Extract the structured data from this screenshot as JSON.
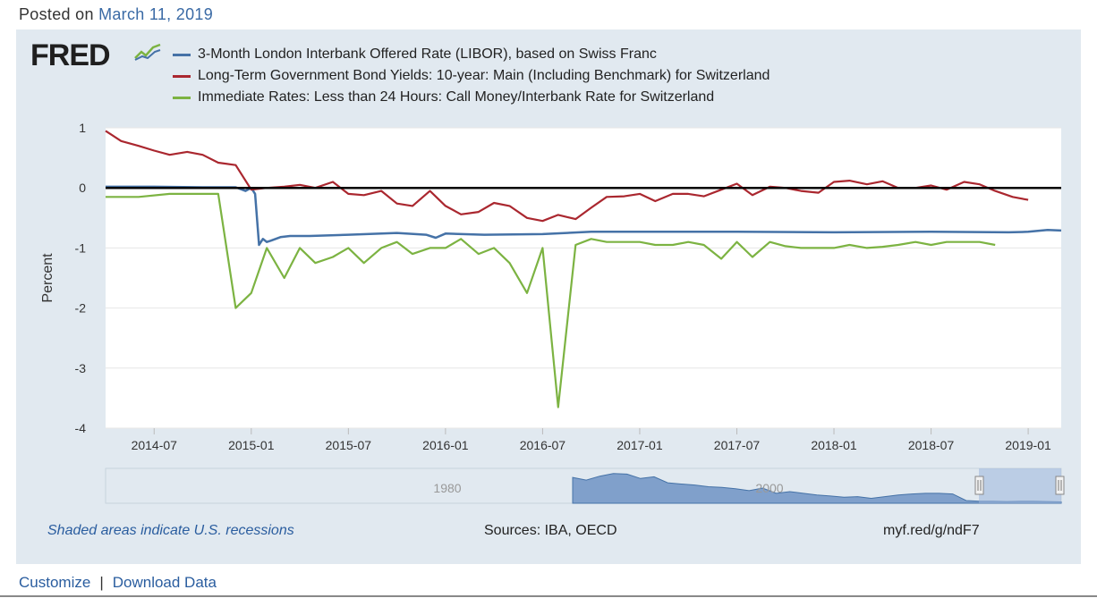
{
  "header": {
    "posted_prefix": "Posted on",
    "posted_date": "March 11, 2019"
  },
  "logo": {
    "text": "FRED"
  },
  "footer": {
    "recessions_note": "Shaded areas indicate U.S. recessions",
    "sources": "Sources: IBA, OECD",
    "short_link": "myf.red/g/ndF7"
  },
  "links": {
    "customize": "Customize",
    "separator": "|",
    "download": "Download Data"
  },
  "colors": {
    "libor": "#4572a7",
    "bond": "#aa272f",
    "call": "#7cb342",
    "plot_bg": "#ffffff",
    "panel_bg": "#e1e9f0"
  },
  "chart_data": {
    "type": "line",
    "ylabel": "Percent",
    "ylim": [
      -4,
      1
    ],
    "yticks": [
      "1",
      "0",
      "-1",
      "-2",
      "-3",
      "-4"
    ],
    "xlim": [
      2014.25,
      2019.17
    ],
    "xticks": [
      {
        "label": "2014-07",
        "x": 2014.5
      },
      {
        "label": "2015-01",
        "x": 2015.0
      },
      {
        "label": "2015-07",
        "x": 2015.5
      },
      {
        "label": "2016-01",
        "x": 2016.0
      },
      {
        "label": "2016-07",
        "x": 2016.5
      },
      {
        "label": "2017-01",
        "x": 2017.0
      },
      {
        "label": "2017-07",
        "x": 2017.5
      },
      {
        "label": "2018-01",
        "x": 2018.0
      },
      {
        "label": "2018-07",
        "x": 2018.5
      },
      {
        "label": "2019-01",
        "x": 2019.0
      }
    ],
    "navigator_labels": [
      "1980",
      "2000"
    ],
    "series": [
      {
        "name": "3-Month London Interbank Offered Rate (LIBOR), based on Swiss Franc",
        "key": "libor",
        "x": [
          2014.25,
          2014.5,
          2014.75,
          2014.92,
          2014.97,
          2015.0,
          2015.02,
          2015.04,
          2015.06,
          2015.08,
          2015.1,
          2015.15,
          2015.2,
          2015.3,
          2015.5,
          2015.75,
          2015.9,
          2015.95,
          2016.0,
          2016.2,
          2016.5,
          2016.75,
          2017.0,
          2017.5,
          2018.0,
          2018.5,
          2018.9,
          2019.0,
          2019.1,
          2019.17
        ],
        "values": [
          0.02,
          0.02,
          0.01,
          0.01,
          -0.05,
          0.0,
          -0.1,
          -0.95,
          -0.85,
          -0.9,
          -0.88,
          -0.82,
          -0.8,
          -0.8,
          -0.78,
          -0.75,
          -0.78,
          -0.83,
          -0.76,
          -0.78,
          -0.77,
          -0.73,
          -0.73,
          -0.73,
          -0.74,
          -0.73,
          -0.74,
          -0.73,
          -0.7,
          -0.71
        ]
      },
      {
        "name": "Long-Term Government Bond Yields: 10-year: Main (Including Benchmark) for Switzerland",
        "key": "bond",
        "x": [
          2014.25,
          2014.33,
          2014.42,
          2014.5,
          2014.58,
          2014.67,
          2014.75,
          2014.83,
          2014.92,
          2015.0,
          2015.08,
          2015.17,
          2015.25,
          2015.33,
          2015.42,
          2015.5,
          2015.58,
          2015.67,
          2015.75,
          2015.83,
          2015.92,
          2016.0,
          2016.08,
          2016.17,
          2016.25,
          2016.33,
          2016.42,
          2016.5,
          2016.58,
          2016.67,
          2016.75,
          2016.83,
          2016.92,
          2017.0,
          2017.08,
          2017.17,
          2017.25,
          2017.33,
          2017.42,
          2017.5,
          2017.58,
          2017.67,
          2017.75,
          2017.83,
          2017.92,
          2018.0,
          2018.08,
          2018.17,
          2018.25,
          2018.33,
          2018.42,
          2018.5,
          2018.58,
          2018.67,
          2018.75,
          2018.83,
          2018.92,
          2019.0
        ],
        "values": [
          0.95,
          0.78,
          0.7,
          0.62,
          0.55,
          0.6,
          0.55,
          0.42,
          0.38,
          -0.03,
          0.0,
          0.02,
          0.05,
          0.0,
          0.1,
          -0.1,
          -0.12,
          -0.05,
          -0.26,
          -0.3,
          -0.05,
          -0.3,
          -0.44,
          -0.4,
          -0.25,
          -0.3,
          -0.5,
          -0.55,
          -0.45,
          -0.52,
          -0.33,
          -0.15,
          -0.14,
          -0.1,
          -0.22,
          -0.1,
          -0.1,
          -0.14,
          -0.03,
          0.07,
          -0.12,
          0.02,
          0.0,
          -0.05,
          -0.08,
          0.1,
          0.12,
          0.06,
          0.11,
          0.0,
          0.0,
          0.04,
          -0.03,
          0.1,
          0.06,
          -0.05,
          -0.15,
          -0.2
        ]
      },
      {
        "name": "Immediate Rates: Less than 24 Hours: Call Money/Interbank Rate for Switzerland",
        "key": "call",
        "x": [
          2014.25,
          2014.42,
          2014.58,
          2014.67,
          2014.75,
          2014.83,
          2014.92,
          2015.0,
          2015.08,
          2015.17,
          2015.25,
          2015.33,
          2015.42,
          2015.5,
          2015.58,
          2015.67,
          2015.75,
          2015.83,
          2015.92,
          2016.0,
          2016.08,
          2016.17,
          2016.25,
          2016.33,
          2016.42,
          2016.5,
          2016.58,
          2016.67,
          2016.75,
          2016.83,
          2016.92,
          2017.0,
          2017.08,
          2017.17,
          2017.25,
          2017.33,
          2017.42,
          2017.5,
          2017.58,
          2017.67,
          2017.75,
          2017.83,
          2017.92,
          2018.0,
          2018.08,
          2018.17,
          2018.25,
          2018.33,
          2018.42,
          2018.5,
          2018.58,
          2018.67,
          2018.75,
          2018.83
        ],
        "values": [
          -0.15,
          -0.15,
          -0.1,
          -0.1,
          -0.1,
          -0.1,
          -2.0,
          -1.75,
          -1.0,
          -1.5,
          -1.0,
          -1.25,
          -1.15,
          -1.0,
          -1.25,
          -1.0,
          -0.9,
          -1.1,
          -1.0,
          -1.0,
          -0.85,
          -1.1,
          -1.0,
          -1.25,
          -1.75,
          -1.0,
          -3.65,
          -0.95,
          -0.85,
          -0.9,
          -0.9,
          -0.9,
          -0.95,
          -0.95,
          -0.9,
          -0.95,
          -1.18,
          -0.9,
          -1.15,
          -0.9,
          -0.97,
          -1.0,
          -1.0,
          -1.0,
          -0.95,
          -1.0,
          -0.98,
          -0.95,
          -0.9,
          -0.95,
          -0.9,
          -0.9,
          -0.9,
          -0.95
        ]
      }
    ]
  }
}
